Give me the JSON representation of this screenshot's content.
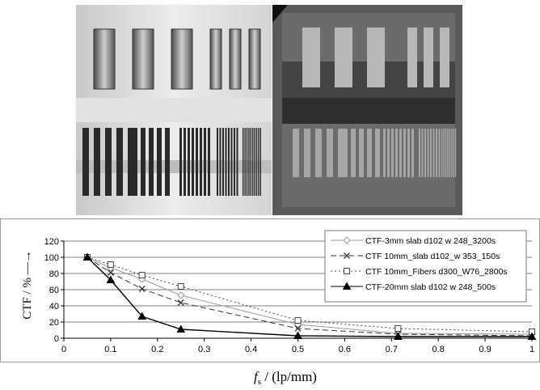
{
  "chart_data": {
    "type": "line",
    "title": "",
    "xlabel_main": "f",
    "xlabel_sub": "s",
    "xlabel_unit": " / (lp/mm)",
    "ylabel": "CTF / % —→",
    "xlim": [
      0,
      1
    ],
    "ylim": [
      0,
      120
    ],
    "x_ticks": [
      "0",
      "0.1",
      "0.2",
      "0.3",
      "0.4",
      "0.5",
      "0.6",
      "0.7",
      "0.8",
      "0.9",
      "1"
    ],
    "y_ticks": [
      "0",
      "20",
      "40",
      "60",
      "80",
      "100",
      "120"
    ],
    "grid": "horizontal",
    "legend_position": "top-right",
    "series": [
      {
        "name": "CTF-3mm slab d102 w 248_3200s",
        "marker": "diamond",
        "line_style": "solid",
        "color": "#9a9a9a",
        "points": [
          [
            0.05,
            100
          ],
          [
            0.1,
            87
          ],
          [
            0.167,
            73
          ],
          [
            0.25,
            53
          ],
          [
            0.5,
            17
          ],
          [
            0.714,
            6
          ],
          [
            1.0,
            5
          ]
        ]
      },
      {
        "name": "CTF 10mm_slab d102_w 353_150s",
        "marker": "x",
        "line_style": "dashed",
        "color": "#333333",
        "points": [
          [
            0.05,
            100
          ],
          [
            0.1,
            81
          ],
          [
            0.167,
            61
          ],
          [
            0.25,
            44
          ],
          [
            0.5,
            12
          ],
          [
            0.714,
            5
          ],
          [
            1.0,
            3
          ]
        ]
      },
      {
        "name": "CTF 10mm_Fibers d300_W76_2800s",
        "marker": "square",
        "line_style": "dotted",
        "color": "#444444",
        "points": [
          [
            0.05,
            100
          ],
          [
            0.1,
            91
          ],
          [
            0.167,
            78
          ],
          [
            0.25,
            64
          ],
          [
            0.5,
            22
          ],
          [
            0.714,
            12
          ],
          [
            1.0,
            8
          ]
        ]
      },
      {
        "name": "CTF-20mm slab  d102 w 248_500s",
        "marker": "triangle",
        "line_style": "solid",
        "color": "#000000",
        "points": [
          [
            0.05,
            100
          ],
          [
            0.1,
            72
          ],
          [
            0.167,
            27
          ],
          [
            0.25,
            11
          ],
          [
            0.5,
            3
          ],
          [
            0.714,
            2
          ],
          [
            1.0,
            2
          ]
        ]
      }
    ]
  },
  "images": {
    "left": "line-pair test phantom photograph",
    "right": "line-pair test phantom radiograph"
  }
}
